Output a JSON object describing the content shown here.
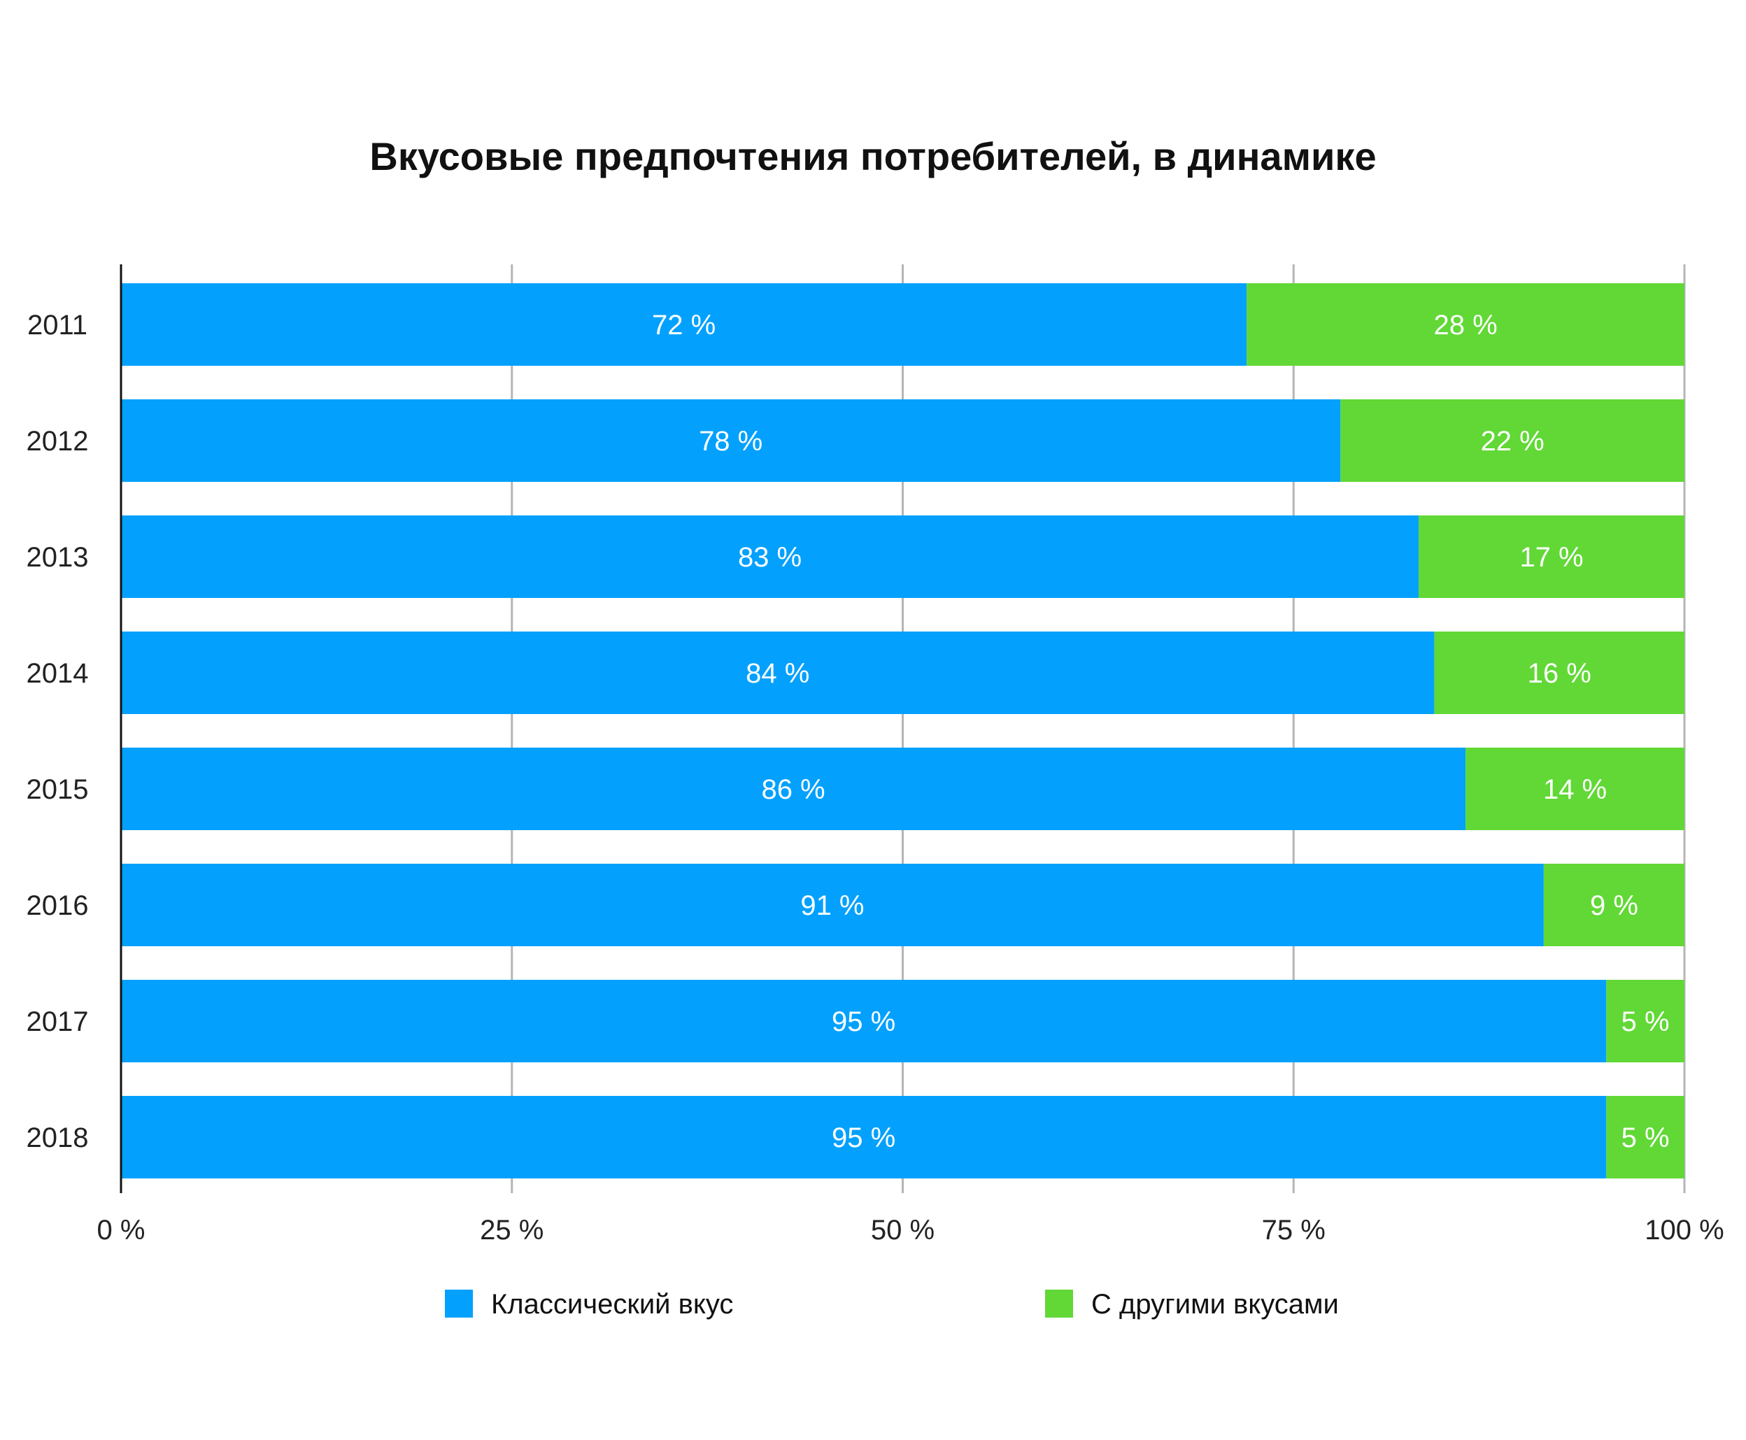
{
  "chart_data": {
    "type": "bar",
    "orientation": "horizontal",
    "stacked": true,
    "title": "Вкусовые предпочтения потребителей, в динамике",
    "categories": [
      "2011",
      "2012",
      "2013",
      "2014",
      "2015",
      "2016",
      "2017",
      "2018"
    ],
    "series": [
      {
        "name": "Классический вкус",
        "color": "#03a1fd",
        "values": [
          72,
          78,
          83,
          84,
          86,
          91,
          95,
          95
        ],
        "labels": [
          "72 %",
          "78 %",
          "83 %",
          "84 %",
          "86 %",
          "91 %",
          "95 %",
          "95 %"
        ]
      },
      {
        "name": "С другими вкусами",
        "color": "#61d836",
        "values": [
          28,
          22,
          17,
          16,
          14,
          9,
          5,
          5
        ],
        "labels": [
          "28 %",
          "22 %",
          "17 %",
          "16 %",
          "14 %",
          "9 %",
          "5 %",
          "5 %"
        ]
      }
    ],
    "xlim": [
      0,
      100
    ],
    "xticks": [
      0,
      25,
      50,
      75,
      100
    ],
    "xtick_labels": [
      "0 %",
      "25 %",
      "50 %",
      "75 %",
      "100 %"
    ],
    "grid": true,
    "legend_position": "bottom"
  }
}
